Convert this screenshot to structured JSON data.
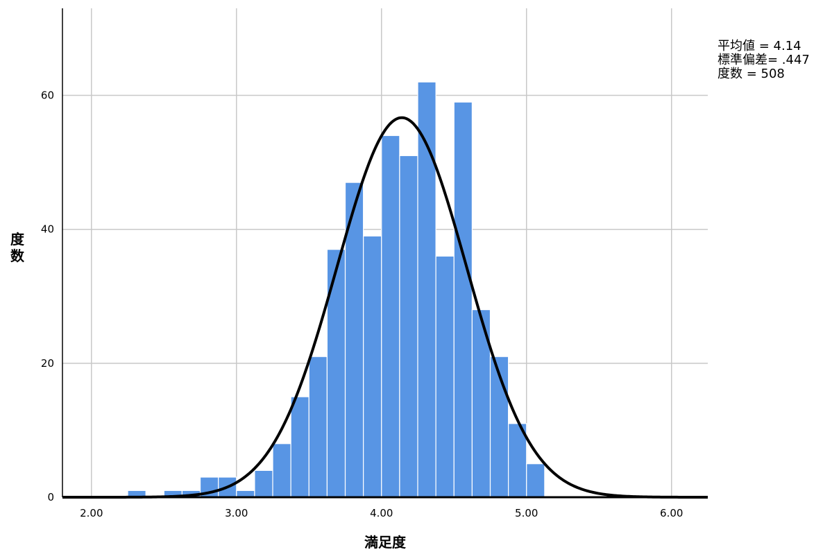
{
  "chart_data": {
    "type": "bar",
    "title": "",
    "xlabel": "満足度",
    "ylabel": "度数",
    "xlim": [
      1.8,
      6.25
    ],
    "ylim": [
      0,
      73
    ],
    "x_ticks": [
      "2.00",
      "3.00",
      "4.00",
      "5.00",
      "6.00"
    ],
    "y_ticks": [
      "0",
      "20",
      "40",
      "60"
    ],
    "grid": true,
    "bar_color": "#5895e4",
    "curve_color": "#000000",
    "bin_width": 0.125,
    "bins": [
      {
        "start": 2.25,
        "count": 1
      },
      {
        "start": 2.5,
        "count": 1
      },
      {
        "start": 2.625,
        "count": 1
      },
      {
        "start": 2.75,
        "count": 3
      },
      {
        "start": 2.875,
        "count": 3
      },
      {
        "start": 3.0,
        "count": 1
      },
      {
        "start": 3.125,
        "count": 4
      },
      {
        "start": 3.25,
        "count": 8
      },
      {
        "start": 3.375,
        "count": 15
      },
      {
        "start": 3.5,
        "count": 21
      },
      {
        "start": 3.625,
        "count": 37
      },
      {
        "start": 3.75,
        "count": 47
      },
      {
        "start": 3.875,
        "count": 39
      },
      {
        "start": 4.0,
        "count": 54
      },
      {
        "start": 4.125,
        "count": 51
      },
      {
        "start": 4.25,
        "count": 62
      },
      {
        "start": 4.375,
        "count": 36
      },
      {
        "start": 4.5,
        "count": 59
      },
      {
        "start": 4.625,
        "count": 28
      },
      {
        "start": 4.75,
        "count": 21
      },
      {
        "start": 4.875,
        "count": 11
      },
      {
        "start": 5.0,
        "count": 5
      }
    ],
    "normal_curve": {
      "mean": 4.14,
      "sd": 0.447,
      "n": 508
    }
  },
  "stats": {
    "mean_text": "平均値 = 4.14",
    "sd_text": "標準偏差= .447",
    "n_text": "度数 = 508"
  }
}
